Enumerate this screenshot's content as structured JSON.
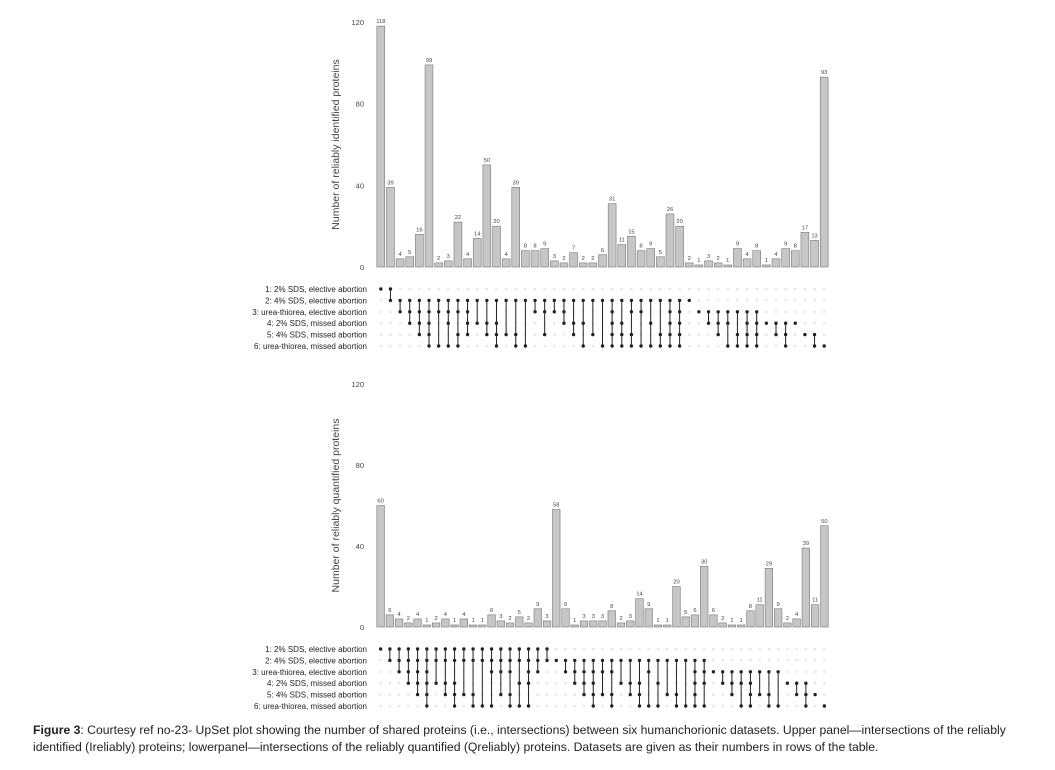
{
  "caption": {
    "label": "Figure 3",
    "text": ": Courtesy ref no-23- UpSet plot showing the number of shared proteins (i.e., intersections) between six humanchorionic datasets. Upper panel—intersections of the reliably identified (Ireliably) proteins; lowerpanel—intersections of the reliably quantified (Qreliably) proteins. Datasets are given as their numbers  in rows of the table."
  },
  "colors": {
    "bar_fill": "#c6c6c6",
    "bar_stroke": "#777777",
    "dot_active": "#222222",
    "dot_inactive": "#e6e6e6"
  },
  "chart_data": [
    {
      "type": "bar",
      "ylabel": "Number of reliably identified proteins",
      "ylim": [
        0,
        120
      ],
      "yticks": [
        0,
        40,
        80,
        120
      ],
      "set_labels": [
        "1: 2% SDS, elective abortion",
        "2: 4% SDS, elective abortion",
        "3: urea-thiorea, elective abortion",
        "4: 2% SDS, missed abortion",
        "5: 4% SDS, missed abortion",
        "6: urea-thiorea, missed abortion"
      ],
      "values": [
        118,
        39,
        4,
        5,
        16,
        99,
        2,
        3,
        22,
        4,
        14,
        50,
        20,
        4,
        39,
        8,
        8,
        9,
        3,
        2,
        7,
        2,
        2,
        6,
        31,
        11,
        15,
        8,
        9,
        5,
        26,
        20,
        2,
        1,
        3,
        2,
        1,
        9,
        4,
        8,
        1,
        4,
        9,
        8,
        17,
        13,
        93
      ],
      "sets": [
        [
          1
        ],
        [
          1,
          2
        ],
        [
          2,
          3
        ],
        [
          2,
          3,
          4
        ],
        [
          2,
          3,
          4,
          5
        ],
        [
          2,
          3,
          4,
          5,
          6
        ],
        [
          2,
          3,
          6
        ],
        [
          2,
          3,
          4,
          6
        ],
        [
          2,
          3,
          5,
          6
        ],
        [
          2,
          3,
          4,
          5
        ],
        [
          2,
          4
        ],
        [
          2,
          4,
          5
        ],
        [
          2,
          4,
          5,
          6
        ],
        [
          2,
          5
        ],
        [
          2,
          5,
          6
        ],
        [
          2,
          6
        ],
        [
          2,
          3
        ],
        [
          2,
          3,
          5
        ],
        [
          2,
          3
        ],
        [
          2,
          3,
          4
        ],
        [
          2,
          4,
          5
        ],
        [
          2,
          4,
          6
        ],
        [
          2,
          5
        ],
        [
          2,
          6
        ],
        [
          2,
          3,
          4,
          5,
          6
        ],
        [
          2,
          4,
          5,
          6
        ],
        [
          2,
          3,
          5,
          6
        ],
        [
          2,
          3,
          6
        ],
        [
          2,
          4,
          6
        ],
        [
          2,
          5,
          6
        ],
        [
          2,
          3,
          4,
          5,
          6
        ],
        [
          2,
          3,
          4,
          5,
          6
        ],
        [
          2
        ],
        [
          3
        ],
        [
          3,
          4
        ],
        [
          3,
          4,
          5
        ],
        [
          3,
          4,
          6
        ],
        [
          3,
          5,
          6
        ],
        [
          3,
          4,
          5,
          6
        ],
        [
          3,
          4,
          5,
          6
        ],
        [
          4
        ],
        [
          4,
          5
        ],
        [
          4,
          5,
          6
        ],
        [
          4
        ],
        [
          5
        ],
        [
          5,
          6
        ],
        [
          6
        ]
      ]
    },
    {
      "type": "bar",
      "ylabel": "Number of reliably quantified proteins",
      "ylim": [
        0,
        120
      ],
      "yticks": [
        0,
        40,
        80,
        120
      ],
      "set_labels": [
        "1: 2% SDS, elective abortion",
        "2: 4% SDS, elective abortion",
        "3: urea-thiorea, elective abortion",
        "4: 2% SDS, missed abortion",
        "5: 4% SDS, missed abortion",
        "6: urea-thiorea, missed abortion"
      ],
      "values": [
        60,
        6,
        4,
        2,
        4,
        1,
        2,
        4,
        1,
        4,
        1,
        1,
        6,
        3,
        2,
        5,
        2,
        9,
        3,
        58,
        9,
        1,
        3,
        3,
        3,
        8,
        2,
        3,
        14,
        9,
        1,
        1,
        20,
        5,
        6,
        30,
        6,
        2,
        1,
        1,
        8,
        11,
        29,
        9,
        2,
        4,
        39,
        11,
        50
      ],
      "sets": [
        [
          1
        ],
        [
          1,
          2
        ],
        [
          1,
          2,
          3
        ],
        [
          1,
          2,
          3,
          4
        ],
        [
          1,
          2,
          3,
          4,
          5
        ],
        [
          1,
          2,
          3,
          4,
          5,
          6
        ],
        [
          1,
          2,
          4
        ],
        [
          1,
          2,
          4,
          5
        ],
        [
          1,
          2,
          4,
          5,
          6
        ],
        [
          1,
          2,
          5
        ],
        [
          1,
          2,
          5,
          6
        ],
        [
          1,
          2,
          6
        ],
        [
          1,
          2,
          3,
          6
        ],
        [
          1,
          2,
          3,
          5
        ],
        [
          1,
          2,
          3,
          5,
          6
        ],
        [
          1,
          2,
          4,
          6
        ],
        [
          1,
          2,
          3,
          4,
          6
        ],
        [
          1,
          2,
          3
        ],
        [
          1,
          2
        ],
        [
          2
        ],
        [
          2,
          3
        ],
        [
          2,
          3,
          4
        ],
        [
          2,
          3,
          4,
          5
        ],
        [
          2,
          3,
          4,
          5,
          6
        ],
        [
          2,
          3,
          5
        ],
        [
          2,
          3,
          5,
          6
        ],
        [
          2,
          4
        ],
        [
          2,
          4,
          5
        ],
        [
          2,
          4,
          5,
          6
        ],
        [
          2,
          3,
          6
        ],
        [
          2,
          4,
          6
        ],
        [
          2,
          5
        ],
        [
          2,
          5,
          6
        ],
        [
          2,
          6
        ],
        [
          2,
          3,
          4,
          5,
          6
        ],
        [
          2,
          3,
          4,
          6
        ],
        [
          3
        ],
        [
          3,
          4
        ],
        [
          3,
          4,
          5
        ],
        [
          3,
          4,
          6
        ],
        [
          3,
          4,
          5,
          6
        ],
        [
          3,
          5
        ],
        [
          3,
          5,
          6
        ],
        [
          3,
          6
        ],
        [
          4
        ],
        [
          4,
          5
        ],
        [
          4,
          5,
          6
        ],
        [
          5
        ],
        [
          6
        ]
      ]
    }
  ]
}
